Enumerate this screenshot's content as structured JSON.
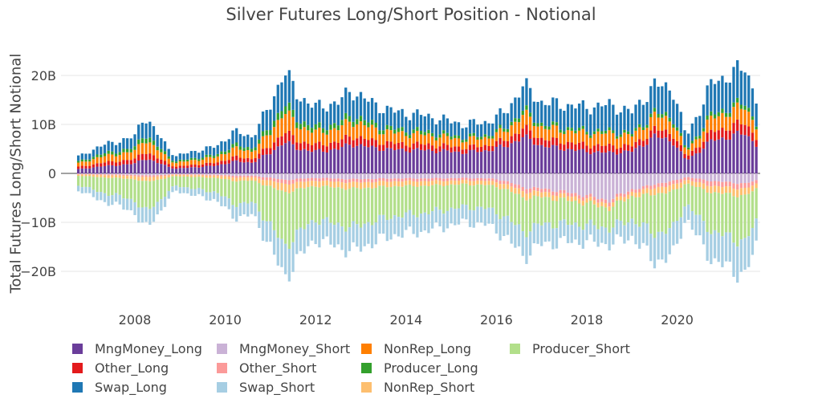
{
  "chart_data": {
    "type": "bar",
    "title": "Silver Futures Long/Short Position - Notional",
    "ylabel": "Total Futures Long/Short Notional",
    "xlabel": "",
    "x_start": "2006-10",
    "x_end": "2021-10",
    "frequency": "monthly",
    "x_ticks": [
      "2008",
      "2010",
      "2012",
      "2014",
      "2016",
      "2018",
      "2020"
    ],
    "y_ticks": [
      "−20B",
      "−10B",
      "0",
      "10B",
      "20B"
    ],
    "ylim": [
      -26,
      26
    ],
    "unit": "B",
    "grid": true,
    "legend_position": "bottom",
    "keyframes_years": [
      2006.8,
      2007.2,
      2007.6,
      2008.0,
      2008.2,
      2008.5,
      2008.9,
      2009.3,
      2009.8,
      2010.2,
      2010.6,
      2011.0,
      2011.3,
      2011.6,
      2012.0,
      2012.5,
      2012.8,
      2013.3,
      2013.8,
      2014.3,
      2014.8,
      2015.3,
      2015.8,
      2016.2,
      2016.6,
      2017.0,
      2017.5,
      2018.0,
      2018.5,
      2019.0,
      2019.5,
      2019.9,
      2020.2,
      2020.5,
      2020.8,
      2021.2,
      2021.5,
      2021.8
    ],
    "total_long_keyframes": [
      3.5,
      5.5,
      6.5,
      7.5,
      12.0,
      8.0,
      3.5,
      4.5,
      5.5,
      8.5,
      7.5,
      14.0,
      21.0,
      16.0,
      13.5,
      14.5,
      17.0,
      14.0,
      12.5,
      12.0,
      11.0,
      10.0,
      10.5,
      12.5,
      18.0,
      14.5,
      14.0,
      13.5,
      14.0,
      12.5,
      18.0,
      17.5,
      7.5,
      13.0,
      19.0,
      20.0,
      22.0,
      14.0
    ],
    "total_short_keyframes": [
      -3.5,
      -5.5,
      -6.5,
      -8.0,
      -11.5,
      -8.5,
      -3.5,
      -4.5,
      -5.5,
      -9.0,
      -8.5,
      -15.0,
      -21.5,
      -17.5,
      -13.5,
      -15.0,
      -16.0,
      -14.0,
      -12.5,
      -12.0,
      -11.0,
      -10.0,
      -10.5,
      -13.0,
      -17.0,
      -14.5,
      -14.0,
      -14.0,
      -14.5,
      -13.0,
      -18.0,
      -17.0,
      -9.0,
      -14.0,
      -18.0,
      -19.5,
      -21.0,
      -13.5
    ],
    "long_shares": {
      "years": [
        2007,
        2011,
        2016,
        2018.5,
        2019.5,
        2020.2,
        2021.5
      ],
      "MngMoney_Long": [
        0.25,
        0.3,
        0.45,
        0.3,
        0.42,
        0.35,
        0.38
      ],
      "Other_Long": [
        0.13,
        0.1,
        0.1,
        0.1,
        0.08,
        0.1,
        0.1
      ],
      "NonRep_Long": [
        0.22,
        0.2,
        0.15,
        0.18,
        0.15,
        0.15,
        0.15
      ],
      "Producer_Long": [
        0.1,
        0.08,
        0.05,
        0.04,
        0.04,
        0.05,
        0.04
      ],
      "Swap_Long": [
        0.3,
        0.32,
        0.25,
        0.38,
        0.31,
        0.35,
        0.33
      ]
    },
    "short_shares": {
      "years": [
        2007,
        2011,
        2016,
        2018.5,
        2019.5,
        2020.2,
        2021.5
      ],
      "MngMoney_Short": [
        0.03,
        0.06,
        0.1,
        0.38,
        0.12,
        0.08,
        0.1
      ],
      "Other_Short": [
        0.03,
        0.04,
        0.05,
        0.05,
        0.04,
        0.06,
        0.05
      ],
      "NonRep_Short": [
        0.08,
        0.08,
        0.08,
        0.06,
        0.07,
        0.08,
        0.07
      ],
      "Producer_Short": [
        0.55,
        0.52,
        0.45,
        0.28,
        0.45,
        0.45,
        0.45
      ],
      "Swap_Short": [
        0.31,
        0.3,
        0.32,
        0.23,
        0.32,
        0.33,
        0.33
      ]
    },
    "long_stack_order": [
      "MngMoney_Long",
      "Other_Long",
      "NonRep_Long",
      "Producer_Long",
      "Swap_Long"
    ],
    "short_stack_order": [
      "MngMoney_Short",
      "Other_Short",
      "NonRep_Short",
      "Producer_Short",
      "Swap_Short"
    ],
    "series": [
      {
        "name": "MngMoney_Long",
        "color": "#6a3d9a"
      },
      {
        "name": "MngMoney_Short",
        "color": "#cab2d6"
      },
      {
        "name": "NonRep_Long",
        "color": "#ff7f00"
      },
      {
        "name": "NonRep_Short",
        "color": "#fdbf6f"
      },
      {
        "name": "Other_Long",
        "color": "#e31a1c"
      },
      {
        "name": "Other_Short",
        "color": "#fb9a99"
      },
      {
        "name": "Producer_Long",
        "color": "#33a02c"
      },
      {
        "name": "Producer_Short",
        "color": "#b2df8a"
      },
      {
        "name": "Swap_Long",
        "color": "#1f78b4"
      },
      {
        "name": "Swap_Short",
        "color": "#a6cee3"
      }
    ]
  }
}
